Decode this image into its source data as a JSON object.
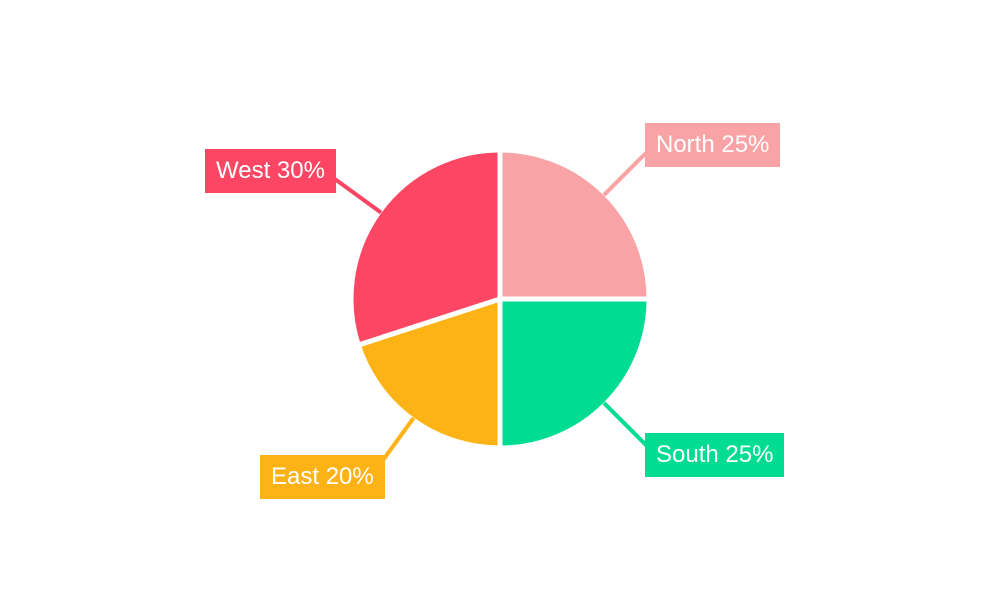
{
  "page": {
    "background": "#FFFFFF"
  },
  "chart_data": {
    "type": "pie",
    "direction": "clockwise",
    "start_angle": "top",
    "background": "#FFFFFF",
    "slice_border_color": "#FFFFFF",
    "label_text_color": "#FFFFFF",
    "legend_position": "none",
    "labels_style": "colored boxes with radial leader lines",
    "slices": [
      {
        "name": "North",
        "value": 25,
        "unit": "%",
        "color": "#F9A3A6",
        "display": "North 25%"
      },
      {
        "name": "South",
        "value": 25,
        "unit": "%",
        "color": "#00DC91",
        "display": "South 25%"
      },
      {
        "name": "East",
        "value": 20,
        "unit": "%",
        "color": "#FDB216",
        "display": "East 20%"
      },
      {
        "name": "West",
        "value": 30,
        "unit": "%",
        "color": "#FC4663",
        "display": "West 30%"
      }
    ]
  }
}
